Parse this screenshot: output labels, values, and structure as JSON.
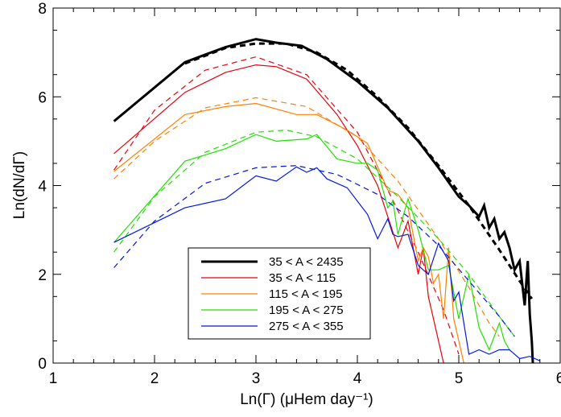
{
  "chart_data": {
    "type": "line",
    "title": "",
    "xlabel": "Ln(Γ) (μHem day⁻¹)",
    "ylabel": "Ln(dN/dΓ)",
    "xlim": [
      1,
      6
    ],
    "ylim": [
      0,
      8
    ],
    "x_ticks": [
      "1",
      "2",
      "3",
      "4",
      "5",
      "6"
    ],
    "y_ticks": [
      "0",
      "2",
      "4",
      "6",
      "8"
    ],
    "grid": false,
    "legend_placement": "bottom-center",
    "series": [
      {
        "name": "35 < A < 2435",
        "color": "#000000",
        "data": [
          [
            1.6,
            5.45
          ],
          [
            2.3,
            6.78
          ],
          [
            2.7,
            7.12
          ],
          [
            3.0,
            7.3
          ],
          [
            3.2,
            7.22
          ],
          [
            3.45,
            7.15
          ],
          [
            3.7,
            6.85
          ],
          [
            4.0,
            6.35
          ],
          [
            4.3,
            5.75
          ],
          [
            4.6,
            5.0
          ],
          [
            4.8,
            4.4
          ],
          [
            5.0,
            3.75
          ],
          [
            5.1,
            3.55
          ],
          [
            5.2,
            3.3
          ],
          [
            5.25,
            3.55
          ],
          [
            5.3,
            3.05
          ],
          [
            5.35,
            3.25
          ],
          [
            5.4,
            2.8
          ],
          [
            5.45,
            2.95
          ],
          [
            5.5,
            2.6
          ],
          [
            5.55,
            2.1
          ],
          [
            5.6,
            2.3
          ],
          [
            5.65,
            1.3
          ],
          [
            5.68,
            2.3
          ],
          [
            5.7,
            1.1
          ],
          [
            5.72,
            0.5
          ],
          [
            5.73,
            0.0
          ]
        ],
        "fit": [
          [
            2.3,
            6.75
          ],
          [
            2.7,
            7.1
          ],
          [
            3.0,
            7.2
          ],
          [
            3.3,
            7.2
          ],
          [
            3.6,
            7.0
          ],
          [
            3.9,
            6.6
          ],
          [
            4.2,
            6.0
          ],
          [
            4.5,
            5.3
          ],
          [
            4.8,
            4.45
          ],
          [
            5.1,
            3.55
          ],
          [
            5.4,
            2.55
          ],
          [
            5.6,
            1.85
          ],
          [
            5.72,
            1.45
          ]
        ]
      },
      {
        "name": "35 < A < 115",
        "color": "#e8000b",
        "data": [
          [
            1.6,
            4.72
          ],
          [
            2.3,
            6.1
          ],
          [
            2.7,
            6.55
          ],
          [
            3.0,
            6.72
          ],
          [
            3.2,
            6.68
          ],
          [
            3.5,
            6.4
          ],
          [
            3.8,
            5.6
          ],
          [
            4.0,
            4.9
          ],
          [
            4.2,
            4.0
          ],
          [
            4.4,
            2.6
          ],
          [
            4.5,
            3.2
          ],
          [
            4.6,
            2.0
          ],
          [
            4.65,
            2.6
          ],
          [
            4.7,
            1.5
          ],
          [
            4.75,
            1.0
          ],
          [
            4.8,
            0.5
          ],
          [
            4.85,
            0.0
          ]
        ],
        "fit": [
          [
            1.6,
            4.35
          ],
          [
            2.0,
            5.7
          ],
          [
            2.5,
            6.6
          ],
          [
            3.0,
            6.9
          ],
          [
            3.5,
            6.5
          ],
          [
            4.0,
            5.2
          ],
          [
            4.3,
            3.9
          ],
          [
            4.6,
            2.5
          ],
          [
            4.85,
            1.2
          ],
          [
            5.0,
            0.2
          ]
        ]
      },
      {
        "name": "115 < A < 195",
        "color": "#ff8000",
        "data": [
          [
            1.6,
            4.32
          ],
          [
            2.3,
            5.6
          ],
          [
            2.7,
            5.78
          ],
          [
            3.0,
            5.85
          ],
          [
            3.4,
            5.6
          ],
          [
            3.6,
            5.6
          ],
          [
            3.9,
            5.25
          ],
          [
            4.1,
            4.95
          ],
          [
            4.3,
            3.9
          ],
          [
            4.4,
            3.8
          ],
          [
            4.5,
            3.5
          ],
          [
            4.6,
            2.3
          ],
          [
            4.65,
            2.6
          ],
          [
            4.7,
            2.4
          ],
          [
            4.75,
            1.8
          ],
          [
            4.8,
            2.0
          ],
          [
            4.85,
            1.0
          ],
          [
            4.9,
            2.6
          ],
          [
            4.95,
            1.0
          ],
          [
            5.0,
            0.5
          ],
          [
            5.05,
            0.0
          ]
        ],
        "fit": [
          [
            1.6,
            4.15
          ],
          [
            2.0,
            5.0
          ],
          [
            2.5,
            5.75
          ],
          [
            3.0,
            5.98
          ],
          [
            3.5,
            5.78
          ],
          [
            4.0,
            5.1
          ],
          [
            4.4,
            4.1
          ],
          [
            4.8,
            2.8
          ],
          [
            5.1,
            1.7
          ],
          [
            5.3,
            0.9
          ],
          [
            5.4,
            0.6
          ]
        ]
      },
      {
        "name": "195 < A < 275",
        "color": "#20e000",
        "data": [
          [
            1.6,
            2.72
          ],
          [
            2.3,
            4.55
          ],
          [
            2.7,
            4.83
          ],
          [
            3.0,
            5.15
          ],
          [
            3.2,
            5.0
          ],
          [
            3.5,
            5.05
          ],
          [
            3.6,
            5.15
          ],
          [
            3.8,
            4.6
          ],
          [
            4.0,
            4.5
          ],
          [
            4.1,
            4.5
          ],
          [
            4.2,
            4.35
          ],
          [
            4.3,
            3.5
          ],
          [
            4.35,
            3.65
          ],
          [
            4.4,
            2.9
          ],
          [
            4.5,
            3.7
          ],
          [
            4.6,
            3.0
          ],
          [
            4.7,
            2.1
          ],
          [
            4.8,
            2.1
          ],
          [
            4.9,
            2.2
          ],
          [
            5.0,
            1.0
          ],
          [
            5.1,
            2.0
          ],
          [
            5.2,
            0.8
          ],
          [
            5.3,
            0.3
          ],
          [
            5.4,
            0.9
          ],
          [
            5.45,
            0.5
          ],
          [
            5.5,
            0.3
          ]
        ],
        "fit": [
          [
            1.6,
            2.5
          ],
          [
            2.0,
            3.75
          ],
          [
            2.5,
            4.75
          ],
          [
            3.0,
            5.2
          ],
          [
            3.3,
            5.25
          ],
          [
            3.6,
            5.1
          ],
          [
            4.0,
            4.6
          ],
          [
            4.4,
            3.75
          ],
          [
            4.8,
            2.8
          ],
          [
            5.1,
            2.0
          ],
          [
            5.4,
            1.05
          ],
          [
            5.55,
            0.6
          ]
        ]
      },
      {
        "name": "275 < A < 355",
        "color": "#0018e0",
        "data": [
          [
            1.6,
            2.72
          ],
          [
            2.3,
            3.5
          ],
          [
            2.7,
            3.7
          ],
          [
            3.0,
            4.22
          ],
          [
            3.2,
            4.1
          ],
          [
            3.4,
            4.42
          ],
          [
            3.5,
            4.3
          ],
          [
            3.6,
            4.4
          ],
          [
            3.7,
            4.15
          ],
          [
            3.9,
            3.95
          ],
          [
            4.1,
            3.35
          ],
          [
            4.2,
            2.8
          ],
          [
            4.3,
            3.25
          ],
          [
            4.35,
            2.9
          ],
          [
            4.4,
            2.85
          ],
          [
            4.5,
            2.9
          ],
          [
            4.6,
            2.2
          ],
          [
            4.7,
            2.0
          ],
          [
            4.8,
            2.7
          ],
          [
            4.9,
            2.3
          ],
          [
            4.95,
            1.4
          ],
          [
            5.0,
            1.6
          ],
          [
            5.1,
            0.2
          ],
          [
            5.2,
            0.3
          ],
          [
            5.3,
            0.2
          ],
          [
            5.4,
            0.3
          ],
          [
            5.5,
            0.3
          ],
          [
            5.6,
            0.1
          ],
          [
            5.7,
            0.15
          ],
          [
            5.8,
            0.05
          ]
        ],
        "fit": [
          [
            1.6,
            2.15
          ],
          [
            2.0,
            3.2
          ],
          [
            2.5,
            4.05
          ],
          [
            3.0,
            4.4
          ],
          [
            3.4,
            4.45
          ],
          [
            3.8,
            4.25
          ],
          [
            4.2,
            3.8
          ],
          [
            4.5,
            3.3
          ],
          [
            4.8,
            2.65
          ],
          [
            5.1,
            1.85
          ],
          [
            5.4,
            1.05
          ],
          [
            5.55,
            0.6
          ]
        ]
      }
    ]
  }
}
